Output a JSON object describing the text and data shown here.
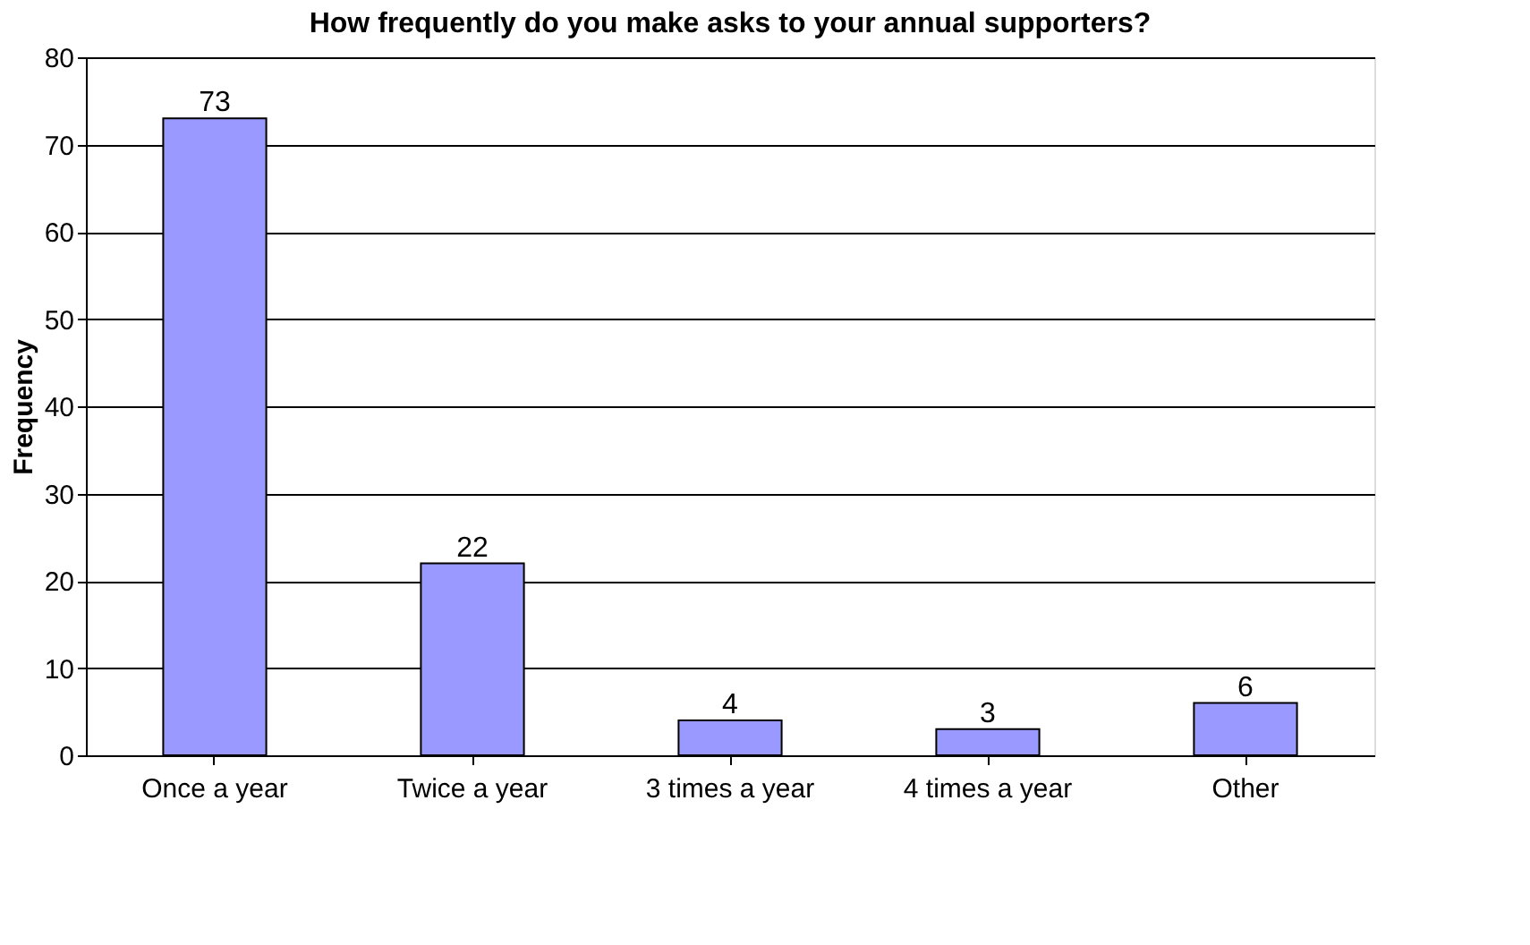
{
  "chart_data": {
    "type": "bar",
    "title": "How frequently do you make asks to your annual supporters?",
    "ylabel": "Frequency",
    "categories": [
      "Once a year",
      "Twice a year",
      "3 times a year",
      "4 times a year",
      "Other"
    ],
    "values": [
      73,
      22,
      4,
      3,
      6
    ],
    "color": "#9999ff",
    "ylim": [
      0,
      80
    ],
    "yticks": [
      0,
      10,
      20,
      30,
      40,
      50,
      60,
      70,
      80
    ],
    "grid": "y",
    "data_labels": true
  }
}
